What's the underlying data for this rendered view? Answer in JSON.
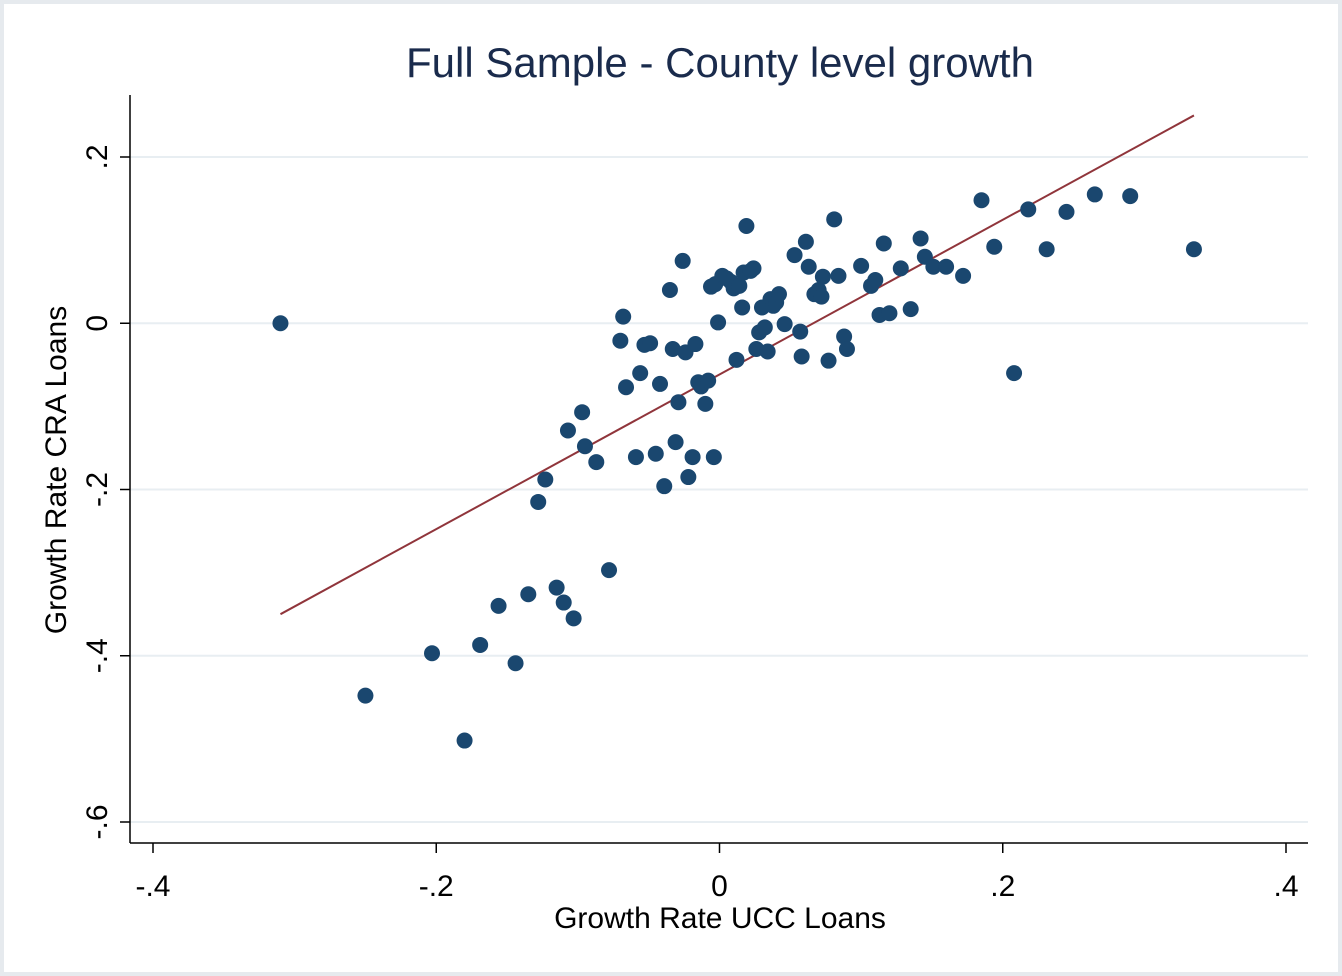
{
  "chart_data": {
    "type": "scatter",
    "title": "Full Sample - County level growth",
    "xlabel": "Growth Rate UCC Loans",
    "ylabel": "Growth Rate CRA Loans",
    "xlim": [
      -0.41,
      0.42
    ],
    "ylim": [
      -0.62,
      0.275
    ],
    "xticks": [
      {
        "value": -0.4,
        "label": "-.4"
      },
      {
        "value": -0.2,
        "label": "-.2"
      },
      {
        "value": 0,
        "label": "0"
      },
      {
        "value": 0.2,
        "label": ".2"
      },
      {
        "value": 0.4,
        "label": ".4"
      }
    ],
    "yticks": [
      {
        "value": -0.6,
        "label": "-.6"
      },
      {
        "value": -0.4,
        "label": "-.4"
      },
      {
        "value": -0.2,
        "label": "-.2"
      },
      {
        "value": 0,
        "label": "0"
      },
      {
        "value": 0.2,
        "label": ".2"
      }
    ],
    "grid": true,
    "marker_color": "#1a476f",
    "fit_line_color": "#90353b",
    "fit_line": {
      "x": [
        -0.31,
        0.335
      ],
      "y": [
        -0.35,
        0.25
      ]
    },
    "points": [
      [
        -0.31,
        0.0
      ],
      [
        -0.25,
        -0.448
      ],
      [
        -0.203,
        -0.397
      ],
      [
        -0.18,
        -0.502
      ],
      [
        -0.169,
        -0.387
      ],
      [
        -0.156,
        -0.34
      ],
      [
        -0.144,
        -0.409
      ],
      [
        -0.135,
        -0.326
      ],
      [
        -0.128,
        -0.215
      ],
      [
        -0.123,
        -0.188
      ],
      [
        -0.115,
        -0.318
      ],
      [
        -0.11,
        -0.336
      ],
      [
        -0.107,
        -0.129
      ],
      [
        -0.103,
        -0.355
      ],
      [
        -0.097,
        -0.107
      ],
      [
        -0.095,
        -0.148
      ],
      [
        -0.087,
        -0.167
      ],
      [
        -0.078,
        -0.297
      ],
      [
        -0.07,
        -0.021
      ],
      [
        -0.068,
        0.008
      ],
      [
        -0.066,
        -0.077
      ],
      [
        -0.059,
        -0.161
      ],
      [
        -0.056,
        -0.06
      ],
      [
        -0.053,
        -0.026
      ],
      [
        -0.049,
        -0.024
      ],
      [
        -0.045,
        -0.157
      ],
      [
        -0.042,
        -0.073
      ],
      [
        -0.039,
        -0.196
      ],
      [
        -0.035,
        0.04
      ],
      [
        -0.033,
        -0.031
      ],
      [
        -0.031,
        -0.143
      ],
      [
        -0.029,
        -0.095
      ],
      [
        -0.026,
        0.075
      ],
      [
        -0.024,
        -0.035
      ],
      [
        -0.022,
        -0.185
      ],
      [
        -0.019,
        -0.161
      ],
      [
        -0.017,
        -0.025
      ],
      [
        -0.015,
        -0.071
      ],
      [
        -0.013,
        -0.076
      ],
      [
        -0.01,
        -0.097
      ],
      [
        -0.008,
        -0.069
      ],
      [
        -0.006,
        0.044
      ],
      [
        -0.004,
        -0.161
      ],
      [
        -0.003,
        0.047
      ],
      [
        -0.001,
        0.001
      ],
      [
        0.002,
        0.057
      ],
      [
        0.005,
        0.054
      ],
      [
        0.008,
        0.05
      ],
      [
        0.01,
        0.042
      ],
      [
        0.012,
        -0.044
      ],
      [
        0.014,
        0.045
      ],
      [
        0.016,
        0.019
      ],
      [
        0.017,
        0.061
      ],
      [
        0.019,
        0.117
      ],
      [
        0.022,
        0.063
      ],
      [
        0.024,
        0.066
      ],
      [
        0.026,
        -0.031
      ],
      [
        0.028,
        -0.011
      ],
      [
        0.03,
        0.019
      ],
      [
        0.032,
        -0.005
      ],
      [
        0.034,
        -0.034
      ],
      [
        0.036,
        0.029
      ],
      [
        0.038,
        0.021
      ],
      [
        0.04,
        0.025
      ],
      [
        0.042,
        0.035
      ],
      [
        0.046,
        -0.001
      ],
      [
        0.053,
        0.082
      ],
      [
        0.057,
        -0.01
      ],
      [
        0.058,
        -0.04
      ],
      [
        0.061,
        0.098
      ],
      [
        0.063,
        0.068
      ],
      [
        0.067,
        0.035
      ],
      [
        0.07,
        0.04
      ],
      [
        0.072,
        0.032
      ],
      [
        0.073,
        0.056
      ],
      [
        0.077,
        -0.045
      ],
      [
        0.081,
        0.125
      ],
      [
        0.084,
        0.057
      ],
      [
        0.088,
        -0.016
      ],
      [
        0.09,
        -0.031
      ],
      [
        0.1,
        0.069
      ],
      [
        0.107,
        0.045
      ],
      [
        0.11,
        0.052
      ],
      [
        0.113,
        0.01
      ],
      [
        0.116,
        0.096
      ],
      [
        0.12,
        0.012
      ],
      [
        0.128,
        0.066
      ],
      [
        0.135,
        0.017
      ],
      [
        0.142,
        0.102
      ],
      [
        0.145,
        0.08
      ],
      [
        0.151,
        0.068
      ],
      [
        0.16,
        0.068
      ],
      [
        0.172,
        0.057
      ],
      [
        0.185,
        0.148
      ],
      [
        0.194,
        0.092
      ],
      [
        0.208,
        -0.06
      ],
      [
        0.218,
        0.137
      ],
      [
        0.231,
        0.089
      ],
      [
        0.245,
        0.134
      ],
      [
        0.265,
        0.155
      ],
      [
        0.29,
        0.153
      ],
      [
        0.335,
        0.089
      ]
    ]
  }
}
